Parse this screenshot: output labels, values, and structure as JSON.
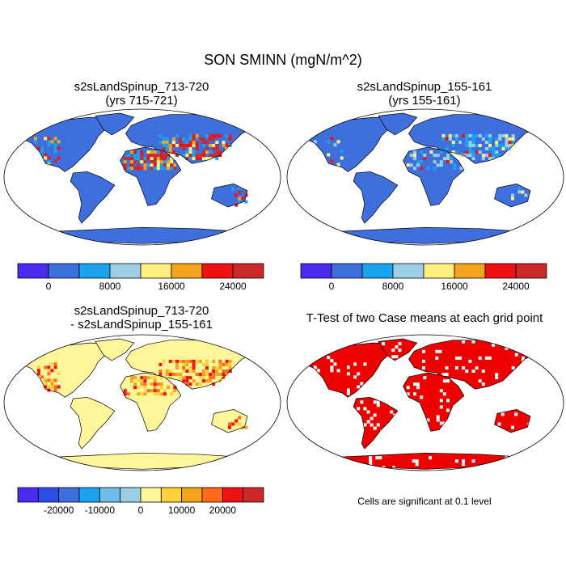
{
  "figure": {
    "title": "SON SMINN (mgN/m^2)"
  },
  "panels": [
    {
      "title_line1": "s2sLandSpinup_713-720",
      "title_line2": "(yrs 715-721)"
    },
    {
      "title_line1": "s2sLandSpinup_155-161",
      "title_line2": "(yrs 155-161)"
    },
    {
      "title_line1": "s2sLandSpinup_713-720",
      "title_line2": "- s2sLandSpinup_155-161"
    },
    {
      "title_line1": "T-Test of two Case means at each grid point",
      "title_line2": ""
    }
  ],
  "colorbars": {
    "abs": {
      "colors": [
        "#4a2cf0",
        "#3f6fdd",
        "#1aa3ee",
        "#9ccfe6",
        "#fff080",
        "#f5a31c",
        "#f01212",
        "#cc2a2a"
      ],
      "tick_labels": [
        "0",
        "8000",
        "16000",
        "24000"
      ]
    },
    "diff": {
      "colors": [
        "#4a2cf0",
        "#2e4fe6",
        "#3f6fdd",
        "#1aa3ee",
        "#6ebdec",
        "#9ccfe6",
        "#fff59a",
        "#ffd23a",
        "#f5a31c",
        "#ff6a1a",
        "#ee1212",
        "#cc2a2a"
      ],
      "tick_labels": [
        "-20000",
        "-10000",
        "0",
        "10000",
        "20000"
      ]
    }
  },
  "ttest_note": "Cells are significant at 0.1 level",
  "chart_data": [
    {
      "type": "heatmap",
      "title": "s2sLandSpinup_713-720 (yrs 715-721)",
      "variable": "SMINN",
      "season": "SON",
      "units": "mgN/m^2",
      "projection": "Robinson world map",
      "dominant_value_range": [
        0,
        4000
      ],
      "high_value_regions": [
        {
          "region": "Sahara / North Africa",
          "range": [
            16000,
            28000
          ]
        },
        {
          "region": "Arabian Peninsula / Middle East",
          "range": [
            16000,
            28000
          ]
        },
        {
          "region": "Central Asia",
          "range": [
            12000,
            28000
          ]
        },
        {
          "region": "Western North America",
          "range": [
            12000,
            24000
          ]
        },
        {
          "region": "Australia (south-east)",
          "range": [
            12000,
            24000
          ]
        }
      ]
    },
    {
      "type": "heatmap",
      "title": "s2sLandSpinup_155-161 (yrs 155-161)",
      "variable": "SMINN",
      "season": "SON",
      "units": "mgN/m^2",
      "projection": "Robinson world map",
      "dominant_value_range": [
        0,
        4000
      ],
      "high_value_regions": [
        {
          "region": "Central Asia",
          "range": [
            8000,
            24000
          ]
        },
        {
          "region": "Sahara / North Africa",
          "range": [
            4000,
            12000
          ]
        },
        {
          "region": "Middle East",
          "range": [
            8000,
            16000
          ]
        }
      ]
    },
    {
      "type": "heatmap",
      "title": "s2sLandSpinup_713-720 - s2sLandSpinup_155-161",
      "variable": "SMINN difference",
      "units": "mgN/m^2",
      "projection": "Robinson world map",
      "dominant_value_range": [
        0,
        4000
      ],
      "high_value_regions": [
        {
          "region": "Sahara / North Africa",
          "range": [
            8000,
            24000
          ]
        },
        {
          "region": "Central Asia",
          "range": [
            4000,
            24000
          ]
        },
        {
          "region": "Western North America",
          "range": [
            4000,
            16000
          ]
        }
      ]
    },
    {
      "type": "heatmap",
      "title": "T-Test of two Case means at each grid point",
      "significance_level": 0.1,
      "significant_color": "#ee0000",
      "coverage": "nearly all land cells significant"
    }
  ]
}
